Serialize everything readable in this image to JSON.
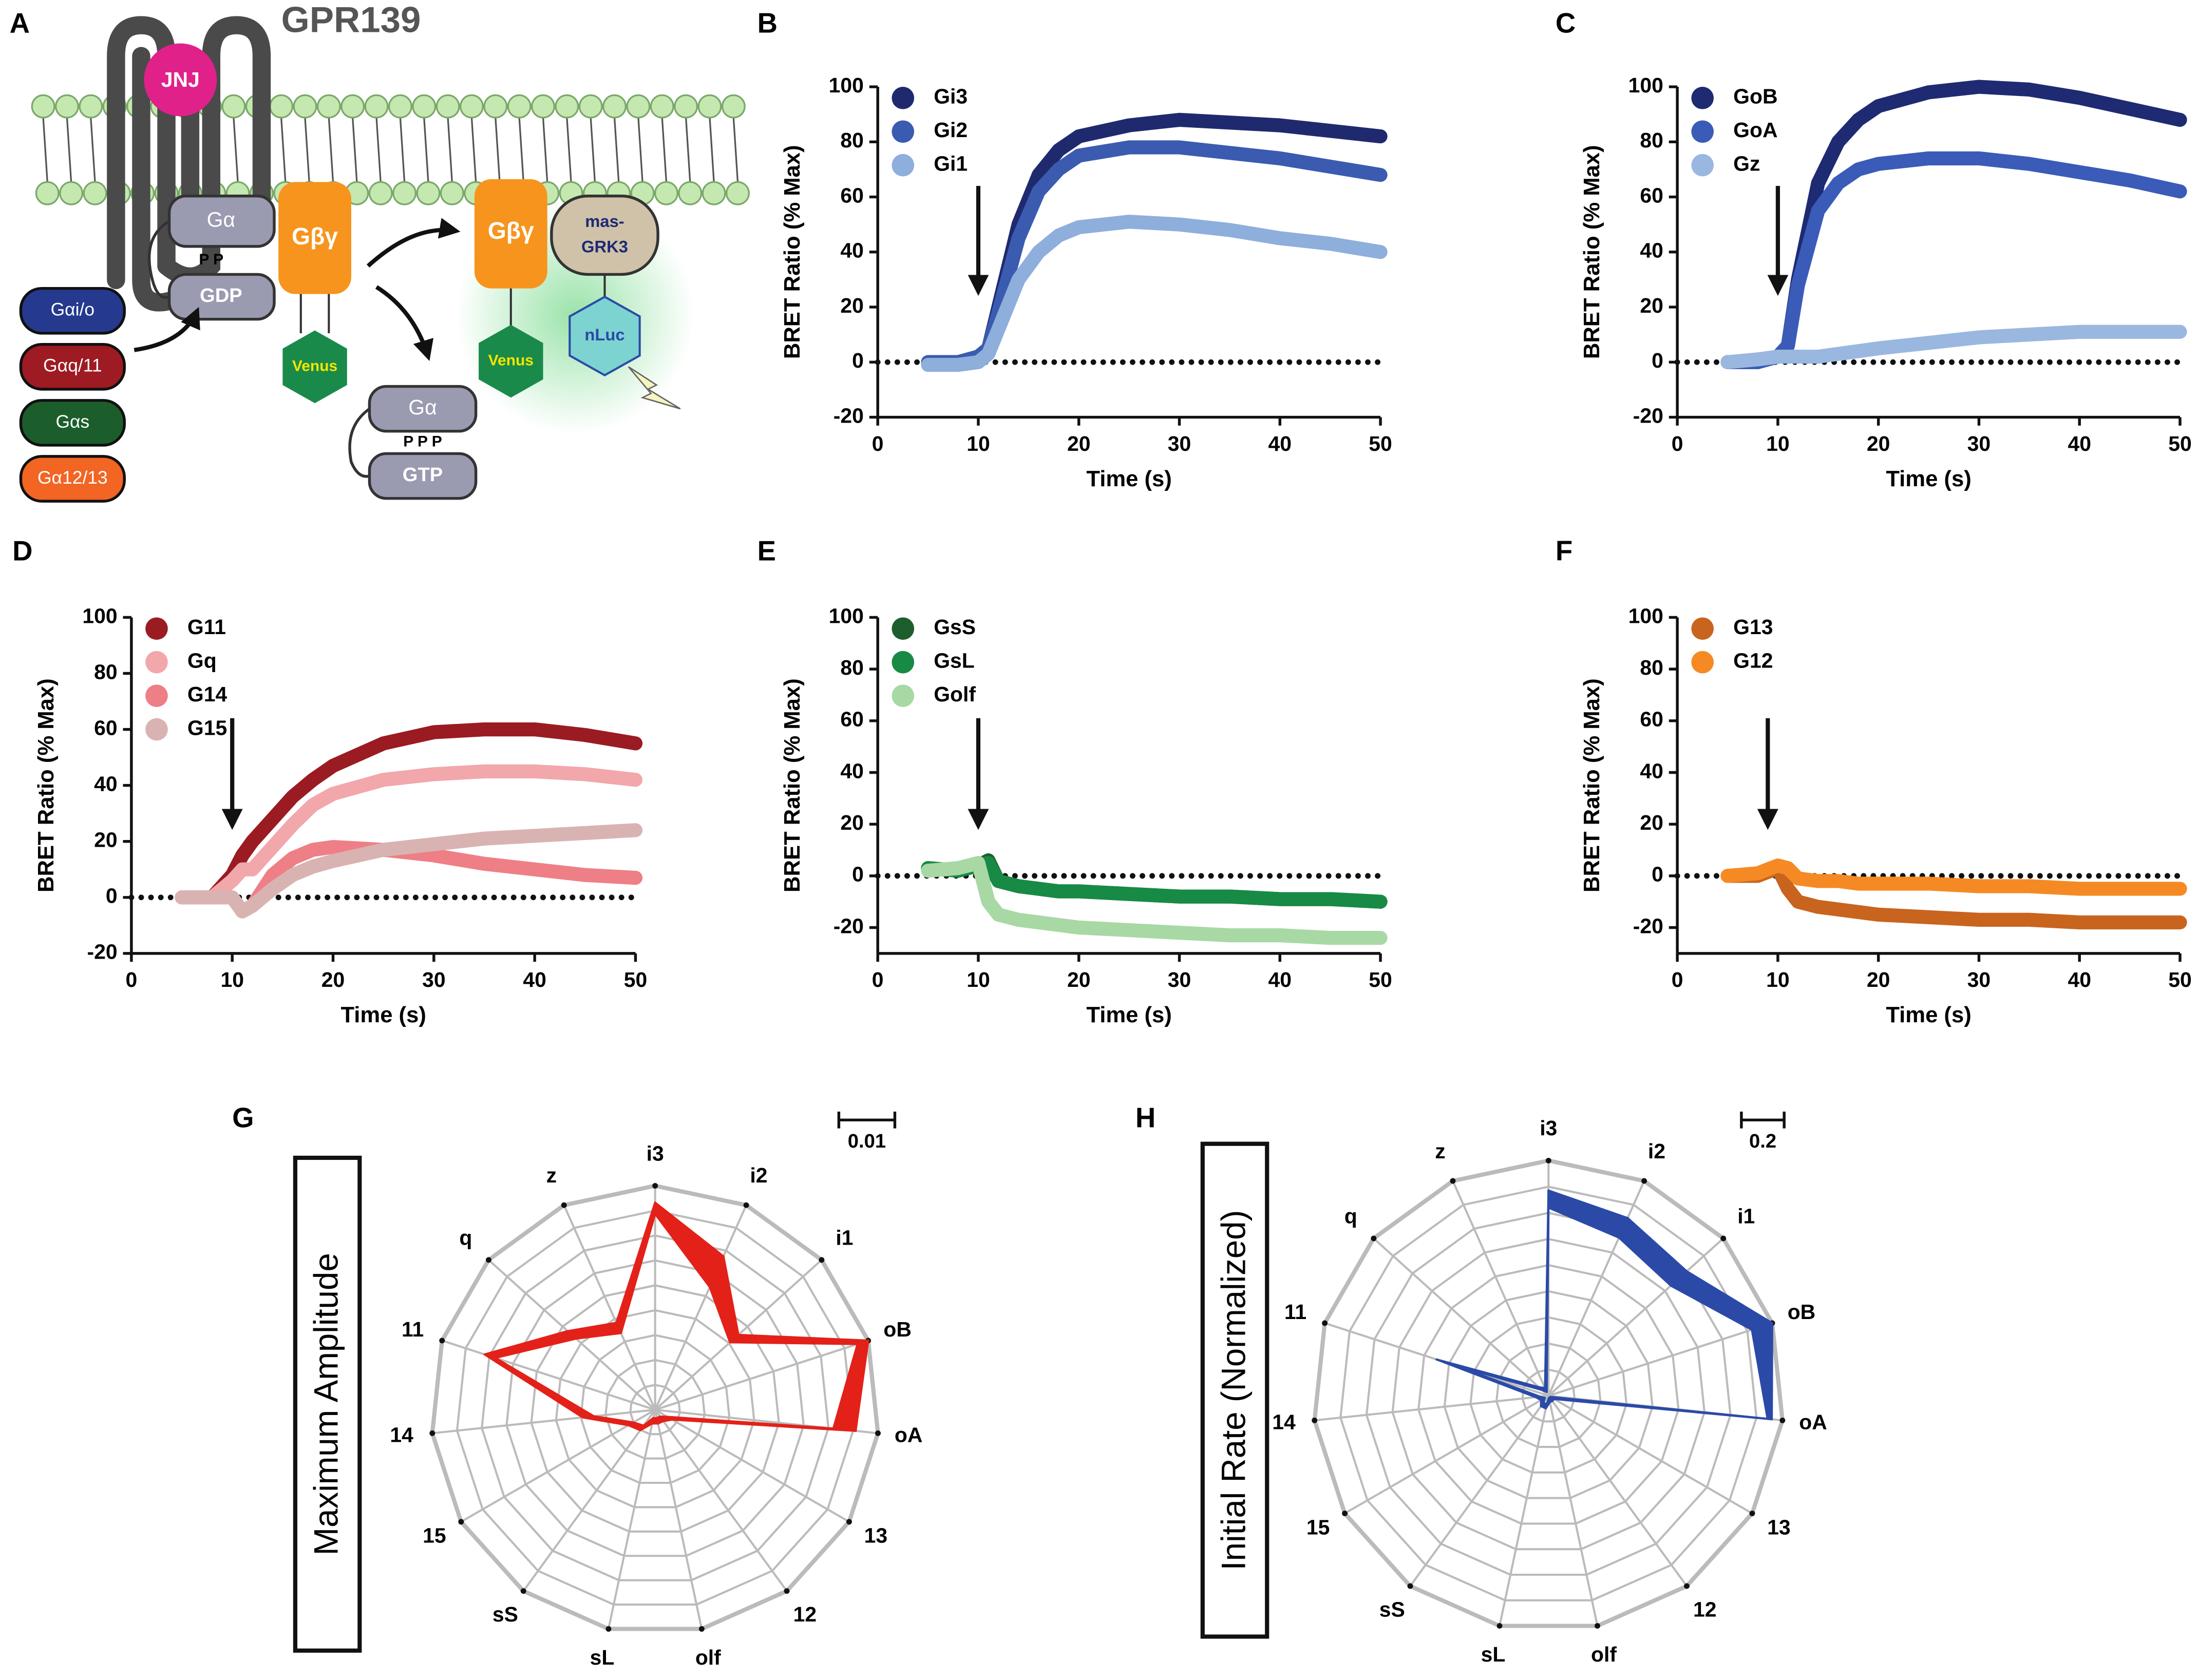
{
  "diagram": {
    "panel": "A",
    "receptor": "GPR139",
    "ligand": "JNJ",
    "inactive": {
      "alpha": "Gα",
      "phosphates": "P P",
      "nucleotide": "GDP",
      "beta_gamma": "Gβγ",
      "tag": "Venus"
    },
    "sensor": {
      "beta_gamma": "Gβγ",
      "tag": "Venus",
      "grk_line1": "mas-",
      "grk_line2": "GRK3",
      "luciferase": "nLuc"
    },
    "active": {
      "alpha": "Gα",
      "phosphates": "P P P",
      "nucleotide": "GTP"
    },
    "families": [
      "Gαi/o",
      "Gαq/11",
      "Gαs",
      "Gα12/13"
    ]
  },
  "chart_data": [
    {
      "type": "line",
      "panel": "B",
      "xlabel": "Time (s)",
      "ylabel": "BRET Ratio (% Max)",
      "xlim": [
        0,
        50
      ],
      "xticks": [
        0,
        10,
        20,
        30,
        40,
        50
      ],
      "ylim": [
        -20,
        100
      ],
      "yticks": [
        -20,
        0,
        20,
        40,
        60,
        80,
        100
      ],
      "legend": "upper left",
      "arrow_x": 10,
      "x": [
        5,
        8,
        10,
        11,
        12,
        14,
        16,
        18,
        20,
        25,
        30,
        35,
        40,
        45,
        50
      ],
      "series": [
        {
          "name": "Gi3",
          "color": "#1f2a6e",
          "values": [
            0,
            0,
            2,
            5,
            20,
            50,
            68,
            77,
            82,
            86,
            88,
            87,
            86,
            84,
            82
          ]
        },
        {
          "name": "Gi2",
          "color": "#3a5bb0",
          "values": [
            0,
            0,
            2,
            5,
            18,
            45,
            62,
            70,
            75,
            78,
            78,
            76,
            74,
            71,
            68
          ]
        },
        {
          "name": "Gi1",
          "color": "#8eaedc",
          "values": [
            -1,
            -1,
            0,
            3,
            12,
            30,
            40,
            46,
            49,
            51,
            50,
            48,
            45,
            43,
            40
          ]
        }
      ]
    },
    {
      "type": "line",
      "panel": "C",
      "xlabel": "Time (s)",
      "ylabel": "BRET Ratio (% Max)",
      "xlim": [
        0,
        50
      ],
      "xticks": [
        0,
        10,
        20,
        30,
        40,
        50
      ],
      "ylim": [
        -20,
        100
      ],
      "yticks": [
        -20,
        0,
        20,
        40,
        60,
        80,
        100
      ],
      "legend": "upper left",
      "arrow_x": 10,
      "x": [
        5,
        8,
        10,
        11,
        12,
        14,
        16,
        18,
        20,
        25,
        30,
        35,
        40,
        45,
        50
      ],
      "series": [
        {
          "name": "GoB",
          "color": "#1e2a72",
          "values": [
            0,
            0,
            2,
            6,
            30,
            65,
            80,
            88,
            93,
            98,
            100,
            99,
            96,
            92,
            88
          ]
        },
        {
          "name": "GoA",
          "color": "#3a5bb8",
          "values": [
            0,
            0,
            2,
            6,
            28,
            55,
            65,
            70,
            72,
            74,
            74,
            72,
            69,
            66,
            62
          ]
        },
        {
          "name": "Gz",
          "color": "#9ab7e0",
          "values": [
            0,
            1,
            2,
            2,
            2,
            2,
            3,
            4,
            5,
            7,
            9,
            10,
            11,
            11,
            11
          ]
        }
      ]
    },
    {
      "type": "line",
      "panel": "D",
      "xlabel": "Time (s)",
      "ylabel": "BRET Ratio (% Max)",
      "xlim": [
        0,
        50
      ],
      "xticks": [
        0,
        10,
        20,
        30,
        40,
        50
      ],
      "ylim": [
        -20,
        100
      ],
      "yticks": [
        -20,
        0,
        20,
        40,
        60,
        80,
        100
      ],
      "legend": "upper left",
      "arrow_x": 10,
      "x": [
        5,
        8,
        10,
        11,
        12,
        14,
        16,
        18,
        20,
        25,
        30,
        35,
        40,
        45,
        50
      ],
      "series": [
        {
          "name": "G11",
          "color": "#9b1b22",
          "values": [
            0,
            0,
            8,
            15,
            20,
            28,
            36,
            42,
            47,
            55,
            59,
            60,
            60,
            58,
            55
          ]
        },
        {
          "name": "Gq",
          "color": "#f2a7ab",
          "values": [
            0,
            0,
            6,
            10,
            10,
            18,
            26,
            33,
            37,
            42,
            44,
            45,
            45,
            44,
            42
          ]
        },
        {
          "name": "G14",
          "color": "#ee7f86",
          "values": [
            0,
            0,
            0,
            -5,
            -3,
            8,
            14,
            17,
            18,
            17,
            15,
            12,
            10,
            8,
            7
          ]
        },
        {
          "name": "G15",
          "color": "#d9b3b2",
          "values": [
            0,
            0,
            0,
            -5,
            -3,
            3,
            8,
            11,
            13,
            17,
            19,
            21,
            22,
            23,
            24
          ]
        }
      ]
    },
    {
      "type": "line",
      "panel": "E",
      "xlabel": "Time (s)",
      "ylabel": "BRET Ratio (% Max)",
      "xlim": [
        0,
        50
      ],
      "xticks": [
        0,
        10,
        20,
        30,
        40,
        50
      ],
      "ylim": [
        -30,
        100
      ],
      "yticks": [
        -20,
        0,
        20,
        40,
        60,
        80,
        100
      ],
      "legend": "upper left",
      "arrow_x": 10,
      "x": [
        5,
        8,
        10,
        11,
        12,
        14,
        16,
        18,
        20,
        25,
        30,
        35,
        40,
        45,
        50
      ],
      "series": [
        {
          "name": "GsS",
          "color": "#1d5e2c",
          "values": [
            3,
            2,
            4,
            6,
            -2,
            -4,
            -5,
            -6,
            -6,
            -7,
            -8,
            -8,
            -9,
            -9,
            -10
          ]
        },
        {
          "name": "GsL",
          "color": "#178a45",
          "values": [
            3,
            2,
            4,
            5,
            -2,
            -4,
            -5,
            -6,
            -6,
            -7,
            -8,
            -8,
            -9,
            -9,
            -10
          ]
        },
        {
          "name": "Golf",
          "color": "#a8d8a4",
          "values": [
            2,
            3,
            5,
            -10,
            -15,
            -17,
            -18,
            -19,
            -20,
            -21,
            -22,
            -23,
            -23,
            -24,
            -24
          ]
        }
      ]
    },
    {
      "type": "line",
      "panel": "F",
      "xlabel": "Time (s)",
      "ylabel": "BRET Ratio (% Max)",
      "xlim": [
        0,
        50
      ],
      "xticks": [
        0,
        10,
        20,
        30,
        40,
        50
      ],
      "ylim": [
        -30,
        100
      ],
      "yticks": [
        -20,
        0,
        20,
        40,
        60,
        80,
        100
      ],
      "legend": "upper left",
      "arrow_x": 9,
      "x": [
        5,
        8,
        10,
        11,
        12,
        14,
        16,
        18,
        20,
        25,
        30,
        35,
        40,
        45,
        50
      ],
      "series": [
        {
          "name": "G13",
          "color": "#c8641e",
          "values": [
            0,
            0,
            3,
            -5,
            -10,
            -12,
            -13,
            -14,
            -15,
            -16,
            -17,
            -17,
            -18,
            -18,
            -18
          ]
        },
        {
          "name": "G12",
          "color": "#f58a24",
          "values": [
            0,
            1,
            4,
            3,
            -1,
            -2,
            -2,
            -3,
            -3,
            -3,
            -4,
            -4,
            -5,
            -5,
            -5
          ]
        }
      ]
    },
    {
      "type": "radar",
      "panel": "G",
      "ylabel": "Maximum Amplitude",
      "color": "#e32119",
      "rlim": [
        0,
        0.04
      ],
      "scale_bar": 0.01,
      "categories": [
        "i3",
        "i2",
        "i1",
        "oB",
        "oA",
        "13",
        "12",
        "olf",
        "sL",
        "sS",
        "15",
        "14",
        "11",
        "q",
        "z"
      ],
      "values": [
        0.036,
        0.027,
        0.019,
        0.039,
        0.034,
        0.003,
        0.002,
        0.002,
        0.002,
        0.004,
        0.005,
        0.012,
        0.031,
        0.02,
        0.016
      ],
      "errors": [
        0.001,
        0.003,
        0.001,
        0.001,
        0.002,
        0.0005,
        0.0005,
        0.0005,
        0.0005,
        0.0005,
        0.0005,
        0.001,
        0.001,
        0.001,
        0.001
      ]
    },
    {
      "type": "radar",
      "panel": "H",
      "ylabel": "Initial Rate (Normalized)",
      "color": "#2b4aa8",
      "rlim": [
        0,
        1.1
      ],
      "scale_bar": 0.2,
      "categories": [
        "i3",
        "i2",
        "i1",
        "oB",
        "oA",
        "13",
        "12",
        "olf",
        "sL",
        "sS",
        "15",
        "14",
        "11",
        "q",
        "z"
      ],
      "values": [
        0.92,
        0.86,
        0.82,
        1.05,
        1.04,
        0.02,
        0.02,
        0.02,
        0.05,
        0.05,
        0.03,
        0.05,
        0.5,
        0.05,
        0.03
      ],
      "errors": [
        0.04,
        0.05,
        0.05,
        0.05,
        0.01,
        0.01,
        0.01,
        0.01,
        0.01,
        0.01,
        0.01,
        0.01,
        0.05,
        0.01,
        0.01
      ]
    }
  ]
}
